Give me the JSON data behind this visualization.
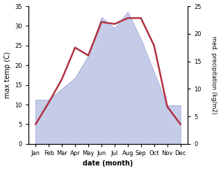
{
  "months": [
    "Jan",
    "Feb",
    "Mar",
    "Apr",
    "May",
    "Jun",
    "Jul",
    "Aug",
    "Sep",
    "Oct",
    "Nov",
    "Dec"
  ],
  "temperature": [
    5.0,
    10.5,
    16.5,
    24.5,
    22.5,
    31.0,
    30.5,
    32.0,
    32.0,
    25.0,
    9.5,
    5.0
  ],
  "precipitation": [
    8.0,
    8.0,
    10.0,
    12.0,
    16.0,
    23.0,
    21.0,
    24.0,
    19.0,
    13.0,
    7.0,
    7.0
  ],
  "temp_color": "#b03040",
  "precip_fill_color": "#c5cce8",
  "precip_edge_color": "#aab2dc",
  "temp_ylim": [
    0,
    35
  ],
  "precip_ylim": [
    0,
    25
  ],
  "temp_yticks": [
    0,
    5,
    10,
    15,
    20,
    25,
    30,
    35
  ],
  "precip_yticks": [
    0,
    5,
    10,
    15,
    20,
    25
  ],
  "xlabel": "date (month)",
  "ylabel_left": "max temp (C)",
  "ylabel_right": "med. precipitation (kg/m2)",
  "temp_linewidth": 1.8,
  "bg_color": "#ffffff"
}
